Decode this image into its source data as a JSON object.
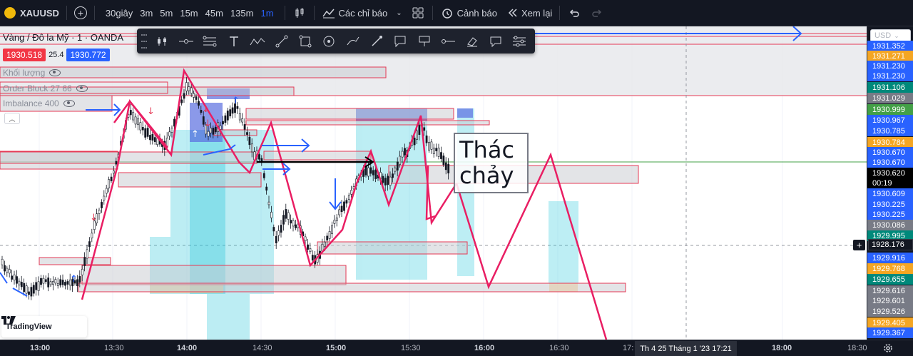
{
  "toolbar": {
    "symbol": "XAUUSD",
    "timeframes": [
      "30giây",
      "3m",
      "5m",
      "15m",
      "45m",
      "135m",
      "1m"
    ],
    "active_timeframe": "1m",
    "indicators_label": "Các chỉ báo",
    "alert_label": "Cảnh báo",
    "replay_label": "Xem lại"
  },
  "legend": {
    "title": "Vàng / Đô la Mỹ · 1 · OANDA",
    "sell_price": "1930.518",
    "spread": "25.4",
    "buy_price": "1930.772",
    "indicators": [
      "Khối lượng",
      "Order Block 27 66",
      "Imbalance 400"
    ]
  },
  "annotation": {
    "line1": "Thác",
    "line2": "chảy"
  },
  "branding": {
    "logo_text": "TradingView"
  },
  "price_scale": {
    "currency": "USD",
    "labels": [
      {
        "text": "1931.352",
        "color": "#2962ff"
      },
      {
        "text": "1931.271",
        "color": "#f5a623"
      },
      {
        "text": "1931.230",
        "color": "#2962ff"
      },
      {
        "text": "1931.230",
        "color": "#2962ff"
      },
      {
        "text": "1931.106",
        "color": "#00897b"
      },
      {
        "text": "1931.029",
        "color": "#787b86"
      },
      {
        "text": "1930.999",
        "color": "#43a047"
      },
      {
        "text": "1930.967",
        "color": "#2962ff"
      },
      {
        "text": "1930.785",
        "color": "#2962ff"
      },
      {
        "text": "1930.784",
        "color": "#f5a623"
      },
      {
        "text": "1930.670",
        "color": "#2962ff"
      },
      {
        "text": "1930.670",
        "color": "#2962ff"
      },
      {
        "text": "1930.620",
        "color": "#000000"
      },
      {
        "text": "00:19",
        "color": "#000000"
      },
      {
        "text": "1930.609",
        "color": "#2962ff"
      },
      {
        "text": "1930.225",
        "color": "#2962ff"
      },
      {
        "text": "1930.225",
        "color": "#2962ff"
      },
      {
        "text": "1930.086",
        "color": "#787b86"
      },
      {
        "text": "1929.995",
        "color": "#00897b"
      },
      {
        "text": "1929.916",
        "color": "#2962ff"
      },
      {
        "text": "1929.768",
        "color": "#f5a623"
      },
      {
        "text": "1929.655",
        "color": "#00897b"
      },
      {
        "text": "1929.616",
        "color": "#787b86"
      },
      {
        "text": "1929.601",
        "color": "#787b86"
      },
      {
        "text": "1929.526",
        "color": "#787b86"
      },
      {
        "text": "1929.405",
        "color": "#f5a623"
      },
      {
        "text": "1929.367",
        "color": "#2962ff"
      }
    ],
    "cursor_price": "1928.176"
  },
  "time_scale": {
    "labels": [
      "13:00",
      "13:30",
      "14:00",
      "14:30",
      "15:00",
      "15:30",
      "16:00",
      "16:30",
      "17:",
      "18:00",
      "18:30"
    ],
    "bold": [
      true,
      false,
      true,
      false,
      true,
      false,
      true,
      false,
      false,
      true,
      false
    ],
    "cursor_time": "Th 4 25 Tháng 1 '23    17:21"
  }
}
